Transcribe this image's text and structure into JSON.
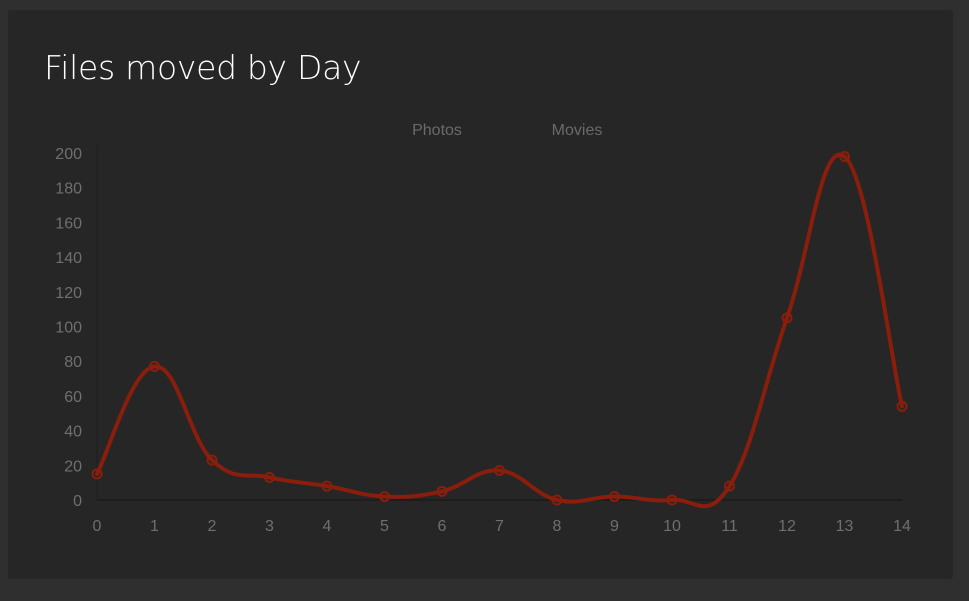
{
  "card": {
    "title": "Files moved by Day"
  },
  "colors": {
    "background": "#2f2f2f",
    "card": "#262626",
    "title": "#ffffff",
    "axis_text": "#6f6f6f",
    "series_photos": "#262626",
    "series_movies": "#8a1e0c"
  },
  "chart_data": {
    "type": "line",
    "title": "Files moved by Day",
    "xlabel": "",
    "ylabel": "",
    "x": [
      0,
      1,
      2,
      3,
      4,
      5,
      6,
      7,
      8,
      9,
      10,
      11,
      12,
      13,
      14
    ],
    "ylim": [
      0,
      200
    ],
    "yticks": [
      0,
      20,
      40,
      60,
      80,
      100,
      120,
      140,
      160,
      180,
      200
    ],
    "grid": false,
    "smooth": true,
    "legend_position": "top-center",
    "series": [
      {
        "name": "Photos",
        "values": [
          15,
          77,
          23,
          13,
          8,
          2,
          5,
          17,
          0,
          2,
          0,
          8,
          105,
          198,
          54
        ]
      },
      {
        "name": "Movies",
        "values": [
          15,
          77,
          23,
          13,
          8,
          2,
          5,
          17,
          0,
          2,
          0,
          8,
          105,
          198,
          54
        ]
      }
    ]
  }
}
